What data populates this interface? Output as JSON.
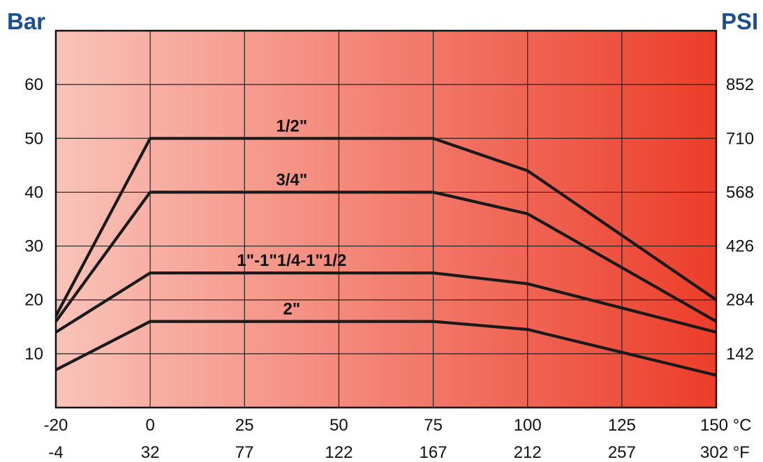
{
  "chart_data": {
    "type": "line",
    "left_axis_label": "Bar",
    "right_axis_label": "PSI",
    "x_celsius_ticks": [
      "-20",
      "0",
      "25",
      "50",
      "75",
      "100",
      "125",
      "150 °C"
    ],
    "x_fahrenheit_ticks": [
      "-4",
      "32",
      "77",
      "122",
      "167",
      "212",
      "257",
      "302 °F"
    ],
    "y_bar_ticks": [
      "60",
      "50",
      "40",
      "30",
      "20",
      "10"
    ],
    "y_psi_ticks": [
      "852",
      "710",
      "568",
      "426",
      "284",
      "142"
    ],
    "x_categories": [
      "-20",
      "0",
      "25",
      "50",
      "75",
      "100",
      "125",
      "150"
    ],
    "ylim": [
      0,
      70
    ],
    "grid": true,
    "background": {
      "from": "#f9c3b9",
      "to": "#ec3d2a"
    },
    "series": [
      {
        "name": "1/2\"",
        "x": [
          -20,
          0,
          75,
          100,
          150
        ],
        "y": [
          17,
          50,
          50,
          44,
          20
        ]
      },
      {
        "name": "3/4\"",
        "x": [
          -20,
          0,
          75,
          100,
          150
        ],
        "y": [
          16,
          40,
          40,
          36,
          16
        ]
      },
      {
        "name": "1\"-1\"1/4-1\"1/2",
        "x": [
          -20,
          0,
          75,
          100,
          150
        ],
        "y": [
          14,
          25,
          25,
          23,
          14
        ]
      },
      {
        "name": "2\"",
        "x": [
          -20,
          0,
          75,
          100,
          150
        ],
        "y": [
          7,
          16,
          16,
          14.5,
          6
        ]
      }
    ]
  }
}
